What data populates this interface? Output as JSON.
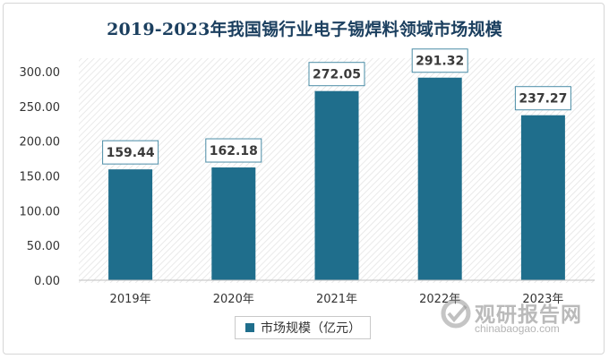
{
  "chart_data": {
    "type": "bar",
    "title": "2019-2023年我国锡行业电子锡焊料领域市场规模",
    "categories": [
      "2019年",
      "2020年",
      "2021年",
      "2022年",
      "2023年"
    ],
    "series": [
      {
        "name": "市场规模（亿元）",
        "values": [
          159.44,
          162.18,
          272.05,
          291.32,
          237.27
        ]
      }
    ],
    "data_labels": [
      "159.44",
      "162.18",
      "272.05",
      "291.32",
      "237.27"
    ],
    "ylim": [
      0,
      300
    ],
    "yticks": [
      "0.00",
      "50.00",
      "100.00",
      "150.00",
      "200.00",
      "250.00",
      "300.00"
    ],
    "xlabel": "",
    "ylabel": "",
    "legend_position": "bottom",
    "grid": false,
    "plot_background": "hatched",
    "colors": {
      "bar": "#1f6e8c",
      "title": "#1b3f5f",
      "label_border": "#4a8ca6"
    }
  },
  "watermark": {
    "text_cn": "观研报告网",
    "text_en": "chinabaogao.com",
    "icon": "chinabaogao-logo-icon"
  }
}
